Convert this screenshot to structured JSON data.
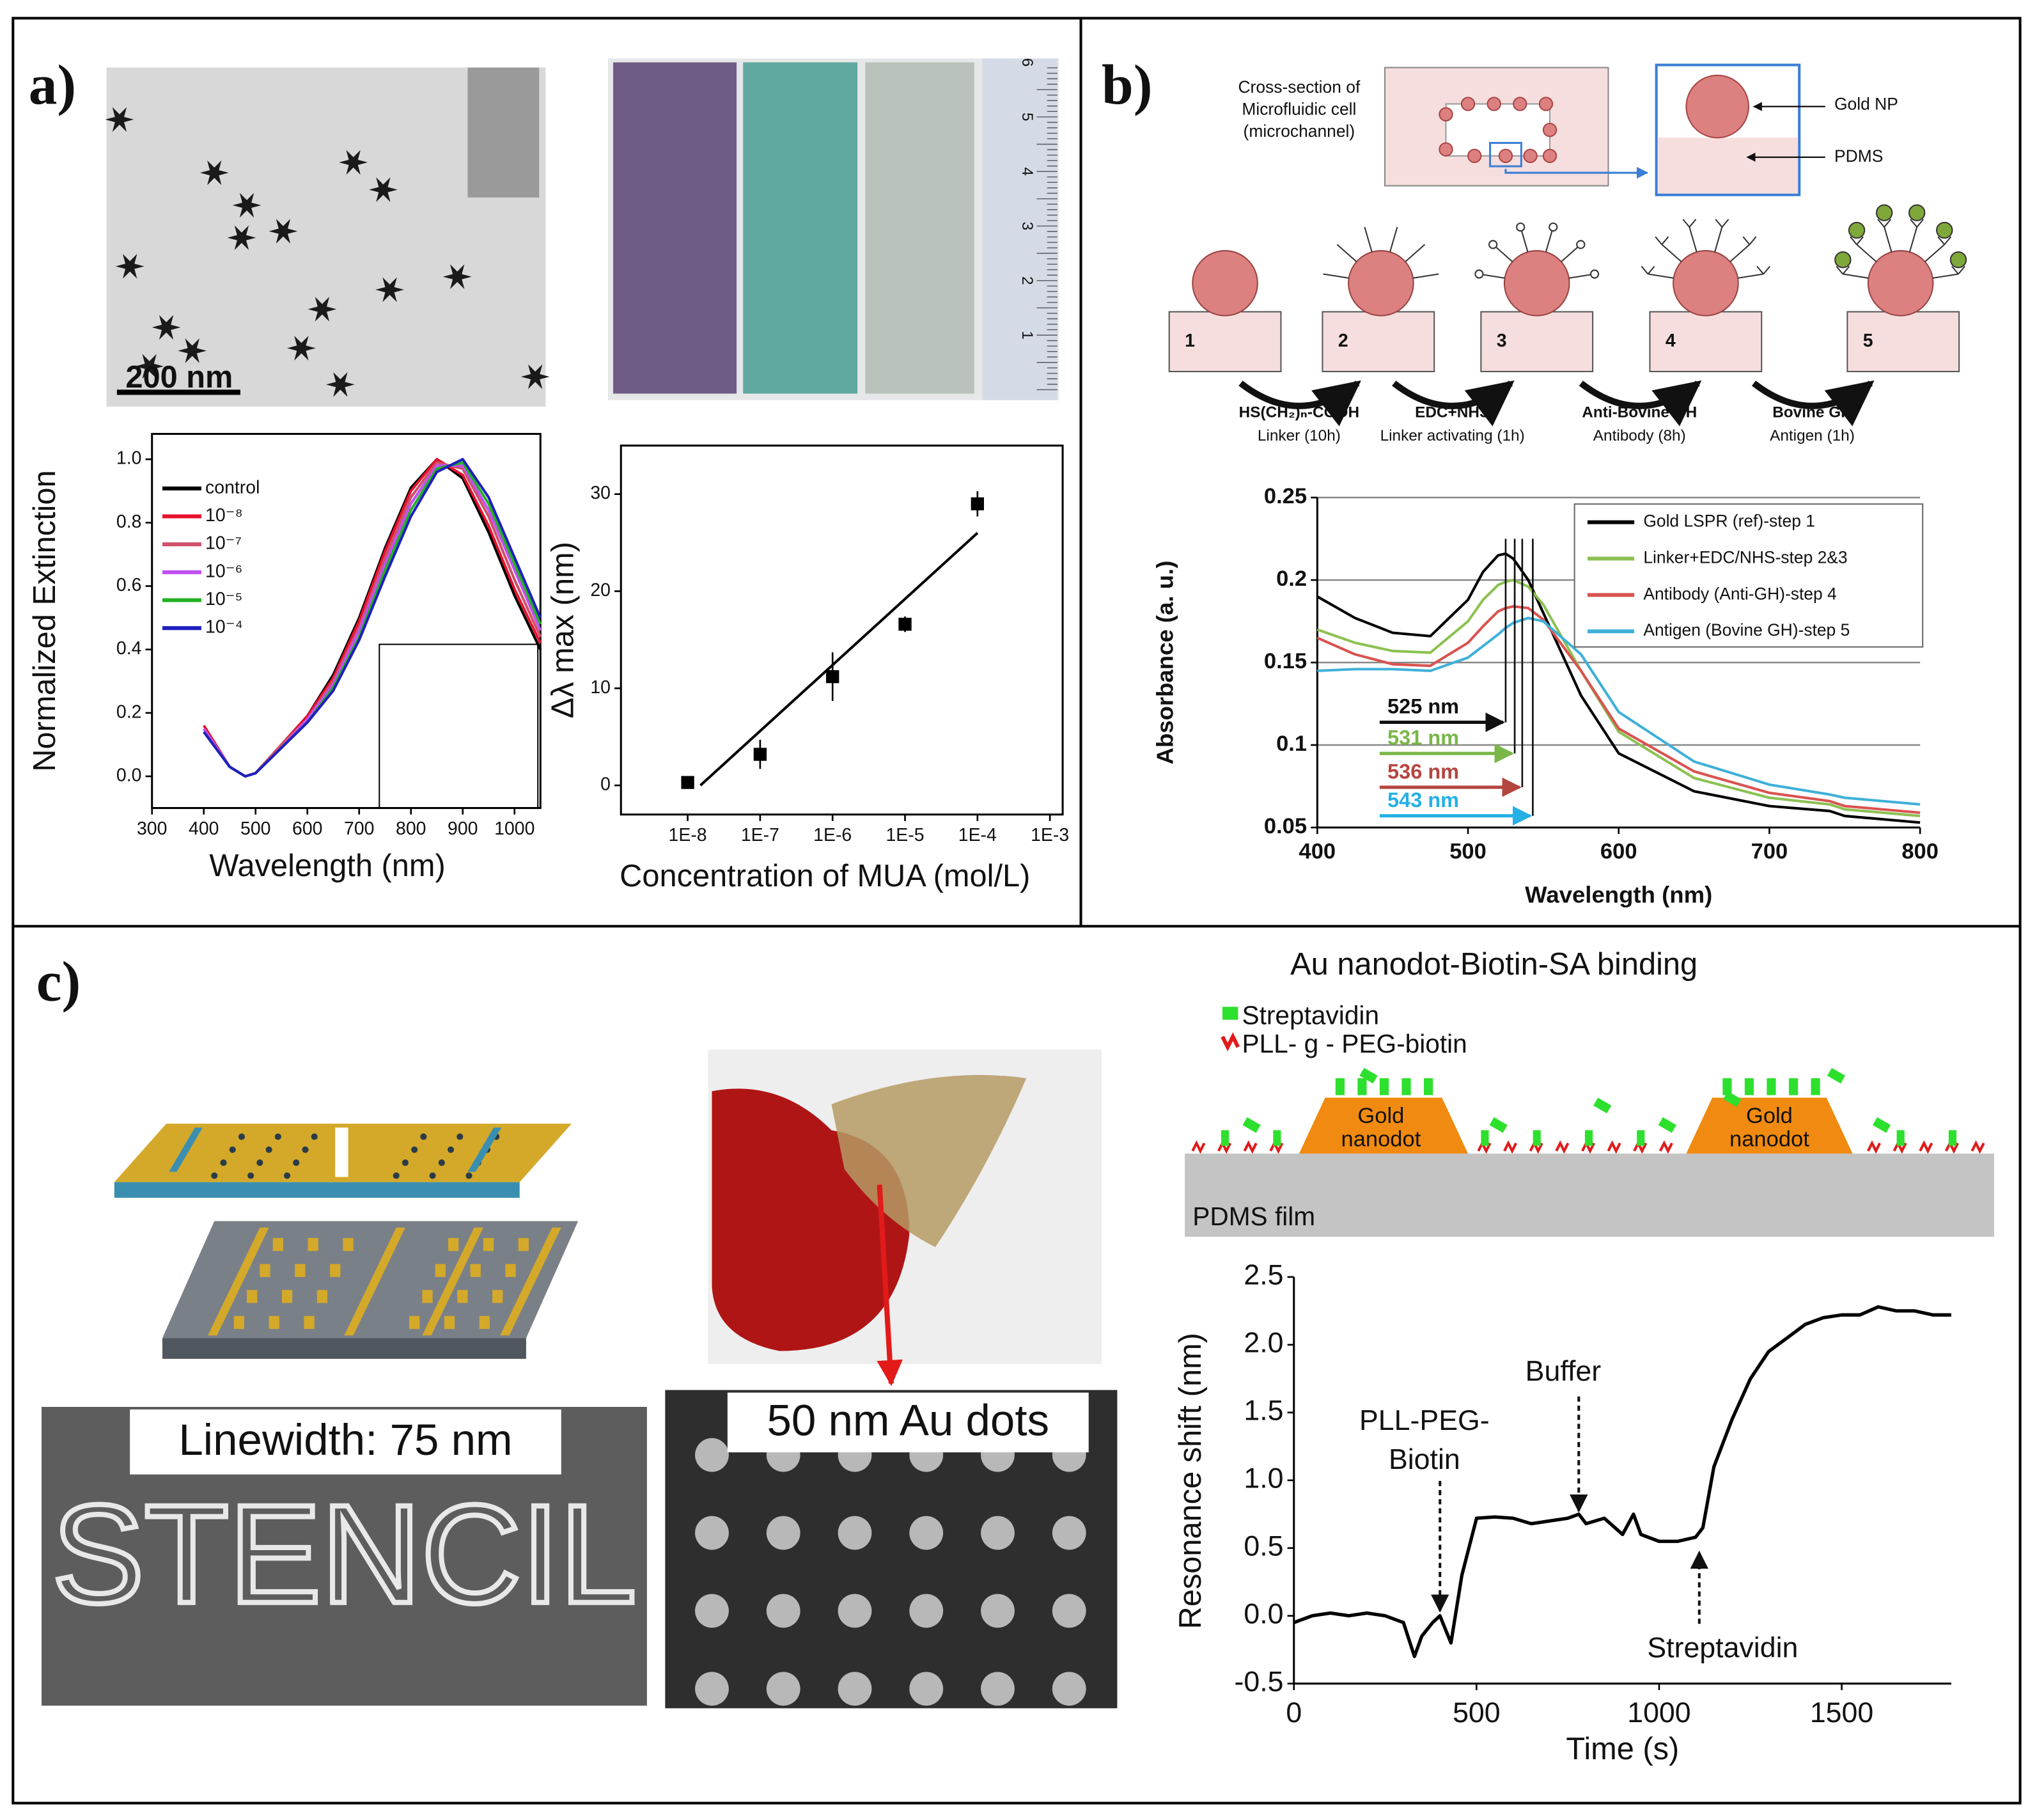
{
  "panel_labels": [
    "a)",
    "b)",
    "c)"
  ],
  "tem_scale_label": "200 nm",
  "ruler_labels": [
    "1",
    "2",
    "3",
    "4",
    "5",
    "6"
  ],
  "diagram_b": {
    "cross_section": [
      "Cross-section of",
      "Microfluidic cell",
      "(microchannel)"
    ],
    "gold_np": "Gold NP",
    "pdms": "PDMS",
    "steps": [
      "1",
      "2",
      "3",
      "4",
      "5"
    ],
    "reagents": [
      {
        "name": "HS(CH₂)ₙ-COOH",
        "role": "Linker (10h)"
      },
      {
        "name": "EDC+NHS",
        "role": "Linker activating (1h)"
      },
      {
        "name": "Anti-Bovine GH",
        "role": "Antibody (8h)"
      },
      {
        "name": "Bovine GH",
        "role": "Antigen (1h)"
      }
    ]
  },
  "diagram_c": {
    "title": "Au nanodot-Biotin-SA binding",
    "legend": [
      "Streptavidin",
      "PLL- g - PEG-biotin"
    ],
    "nanodot_labels": [
      [
        "Gold",
        "nanodot"
      ],
      [
        "Gold",
        "nanodot"
      ]
    ],
    "film_label": "PDMS film",
    "linewidth_label": "Linewidth: 75 nm",
    "stencil_text": "STENCIL",
    "dots_label": "50 nm Au dots"
  },
  "chart_data": [
    {
      "type": "line",
      "x_label": "Wavelength (nm)",
      "y_label": "Normalized Extinction",
      "x": [
        400,
        450,
        480,
        500,
        550,
        600,
        650,
        700,
        750,
        800,
        850,
        900,
        950,
        1000,
        1050
      ],
      "series": [
        {
          "name": "control",
          "color": "#000000",
          "values": [
            0.15,
            0.03,
            0.0,
            0.01,
            0.1,
            0.19,
            0.32,
            0.5,
            0.72,
            0.91,
            1.0,
            0.94,
            0.77,
            0.57,
            0.4
          ]
        },
        {
          "name": "10⁻⁸",
          "color": "#e8112d",
          "values": [
            0.16,
            0.03,
            0.0,
            0.01,
            0.1,
            0.19,
            0.31,
            0.49,
            0.71,
            0.9,
            1.0,
            0.95,
            0.79,
            0.59,
            0.42
          ]
        },
        {
          "name": "10⁻⁷",
          "color": "#d0506a",
          "values": [
            0.15,
            0.03,
            0.0,
            0.01,
            0.1,
            0.18,
            0.3,
            0.47,
            0.69,
            0.88,
            0.99,
            0.97,
            0.82,
            0.62,
            0.44
          ]
        },
        {
          "name": "10⁻⁶",
          "color": "#c050f0",
          "values": [
            0.15,
            0.03,
            0.0,
            0.01,
            0.09,
            0.18,
            0.29,
            0.46,
            0.67,
            0.86,
            0.98,
            0.98,
            0.84,
            0.65,
            0.46
          ]
        },
        {
          "name": "10⁻⁵",
          "color": "#22b022",
          "values": [
            0.14,
            0.03,
            0.0,
            0.01,
            0.09,
            0.17,
            0.28,
            0.44,
            0.65,
            0.84,
            0.97,
            0.99,
            0.86,
            0.67,
            0.48
          ]
        },
        {
          "name": "10⁻⁴",
          "color": "#1f1fbf",
          "values": [
            0.14,
            0.03,
            0.0,
            0.01,
            0.09,
            0.17,
            0.27,
            0.43,
            0.63,
            0.82,
            0.96,
            1.0,
            0.88,
            0.69,
            0.5
          ]
        }
      ],
      "xlim": [
        300,
        1050
      ],
      "xticks": [
        300,
        400,
        500,
        600,
        700,
        800,
        900,
        1000
      ],
      "ylim": [
        -0.1,
        1.08
      ],
      "yticks": [
        {
          "value": 0,
          "label": "0.0"
        },
        0.2,
        0.4,
        0.6,
        0.8,
        {
          "value": 1,
          "label": "1.0"
        }
      ],
      "grid": false
    },
    {
      "type": "scatter",
      "x_label": "Concentration of MUA (mol/L)",
      "y_label": "Δλ max (nm)",
      "x": [
        1e-08,
        1e-07,
        1e-06,
        1e-05,
        0.0001
      ],
      "series": [
        {
          "color": "#000000",
          "values": [
            0.3,
            3.2,
            11.2,
            16.6,
            29
          ],
          "errors": [
            0.4,
            1.5,
            2.5,
            0.8,
            1.3
          ]
        }
      ],
      "fit_line": {
        "x": [
          1.5e-08,
          0.0001
        ],
        "y": [
          0,
          26
        ]
      },
      "xlim": [
        1.2e-09,
        0.0015
      ],
      "log_x": true,
      "xticks": [
        {
          "value": 1e-08,
          "label": "1E-8"
        },
        {
          "value": 1e-07,
          "label": "1E-7"
        },
        {
          "value": 1e-06,
          "label": "1E-6"
        },
        {
          "value": 1e-05,
          "label": "1E-5"
        },
        {
          "value": 0.0001,
          "label": "1E-4"
        },
        {
          "value": 0.001,
          "label": "1E-3"
        }
      ],
      "ylim": [
        -3,
        35
      ],
      "yticks": [
        0,
        10,
        20,
        30
      ],
      "grid": false
    },
    {
      "type": "line",
      "x_label": "Wavelength (nm)",
      "y_label": "Absorbance (a. u.)",
      "x": [
        400,
        425,
        450,
        475,
        500,
        510,
        520,
        525,
        530,
        540,
        550,
        575,
        600,
        650,
        700,
        740,
        750,
        800
      ],
      "series": [
        {
          "name": "Gold LSPR (ref)-step 1",
          "color": "#000000",
          "values": [
            0.19,
            0.177,
            0.168,
            0.166,
            0.188,
            0.205,
            0.215,
            0.216,
            0.213,
            0.2,
            0.18,
            0.13,
            0.095,
            0.072,
            0.063,
            0.06,
            0.057,
            0.053
          ]
        },
        {
          "name": "Linker+EDC/NHS-step 2&3",
          "color": "#8cc152",
          "values": [
            0.17,
            0.162,
            0.157,
            0.156,
            0.175,
            0.188,
            0.197,
            0.199,
            0.2,
            0.196,
            0.185,
            0.145,
            0.108,
            0.08,
            0.068,
            0.064,
            0.061,
            0.057
          ]
        },
        {
          "name": "Antibody (Anti-GH)-step 4",
          "color": "#d9534f",
          "values": [
            0.165,
            0.155,
            0.149,
            0.148,
            0.162,
            0.172,
            0.181,
            0.183,
            0.184,
            0.183,
            0.176,
            0.145,
            0.11,
            0.084,
            0.071,
            0.066,
            0.063,
            0.059
          ]
        },
        {
          "name": "Antigen (Bovine GH)-step 5",
          "color": "#3fb0d8",
          "values": [
            0.145,
            0.146,
            0.146,
            0.145,
            0.153,
            0.16,
            0.167,
            0.171,
            0.174,
            0.177,
            0.175,
            0.155,
            0.12,
            0.09,
            0.076,
            0.07,
            0.068,
            0.064
          ]
        }
      ],
      "peak_labels": [
        {
          "text": "525 nm",
          "x": 525,
          "color": "#111111"
        },
        {
          "text": "531 nm",
          "x": 531,
          "color": "#7ab648"
        },
        {
          "text": "536 nm",
          "x": 536,
          "color": "#b5453f"
        },
        {
          "text": "543 nm",
          "x": 543,
          "color": "#25b0e6"
        }
      ],
      "xlim": [
        400,
        800
      ],
      "xticks": [
        400,
        500,
        600,
        700,
        800
      ],
      "ylim": [
        0.05,
        0.25
      ],
      "yticks": [
        0.05,
        0.1,
        0.15,
        0.2,
        0.25
      ],
      "grid": true
    },
    {
      "type": "line",
      "x_label": "Time (s)",
      "y_label": "Resonance shift (nm)",
      "x": [
        0,
        50,
        100,
        150,
        200,
        250,
        300,
        330,
        350,
        380,
        400,
        430,
        460,
        500,
        550,
        600,
        650,
        700,
        750,
        780,
        800,
        850,
        900,
        930,
        950,
        1000,
        1050,
        1100,
        1120,
        1150,
        1200,
        1250,
        1300,
        1350,
        1400,
        1450,
        1500,
        1550,
        1600,
        1650,
        1700,
        1750,
        1800
      ],
      "series": [
        {
          "color": "#000000",
          "values": [
            -0.05,
            0.0,
            0.02,
            0.0,
            0.02,
            0.0,
            -0.05,
            -0.3,
            -0.15,
            -0.05,
            0.0,
            -0.2,
            0.3,
            0.72,
            0.73,
            0.72,
            0.68,
            0.7,
            0.72,
            0.75,
            0.68,
            0.72,
            0.6,
            0.75,
            0.6,
            0.55,
            0.55,
            0.58,
            0.65,
            1.1,
            1.45,
            1.75,
            1.95,
            2.05,
            2.15,
            2.2,
            2.22,
            2.22,
            2.28,
            2.25,
            2.25,
            2.22,
            2.22
          ]
        }
      ],
      "annotations": [
        {
          "text": [
            "PLL-PEG-",
            "Biotin"
          ],
          "x": 400
        },
        {
          "text": [
            "Buffer"
          ],
          "x": 780
        },
        {
          "text": [
            "Streptavidin"
          ],
          "x": 1110
        }
      ],
      "xlim": [
        0,
        1800
      ],
      "xticks": [
        0,
        500,
        1000,
        1500
      ],
      "ylim": [
        -0.5,
        2.5
      ],
      "yticks": [
        -0.5,
        {
          "value": 0,
          "label": "0.0"
        },
        0.5,
        {
          "value": 1,
          "label": "1.0"
        },
        1.5,
        {
          "value": 2,
          "label": "2.0"
        },
        2.5
      ],
      "grid": false
    }
  ]
}
